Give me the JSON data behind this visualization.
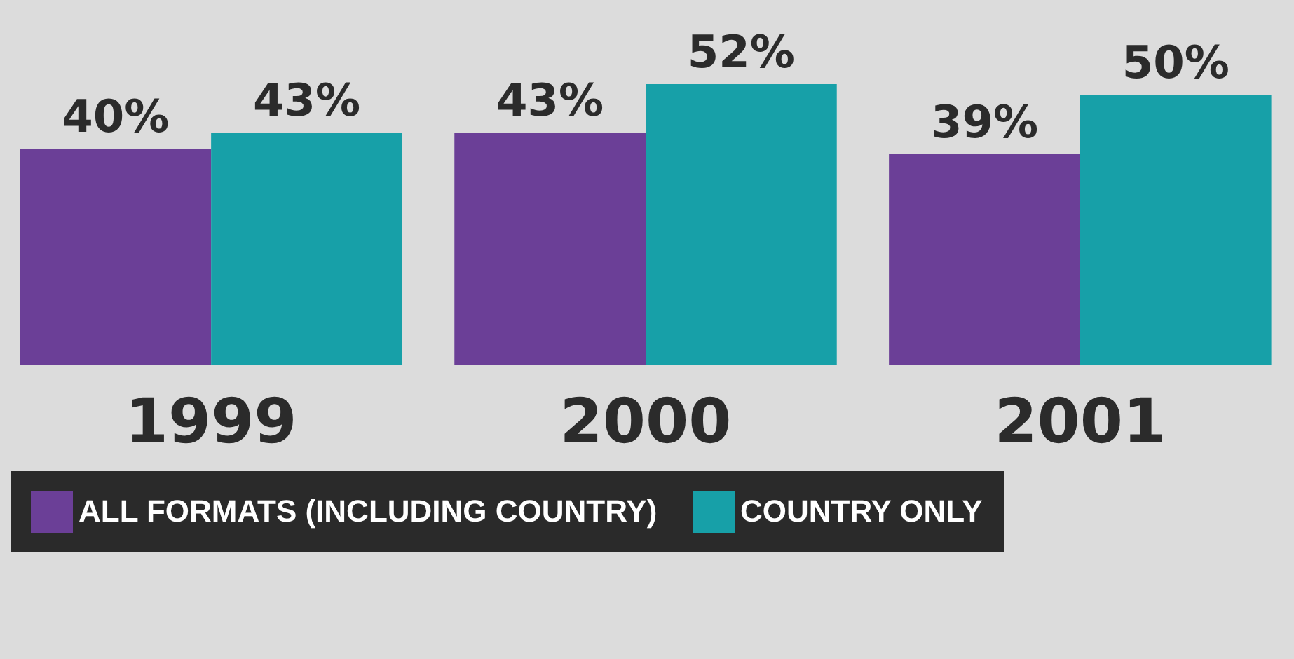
{
  "chart_data": {
    "type": "bar",
    "categories": [
      "1999",
      "2000",
      "2001"
    ],
    "series": [
      {
        "name": "ALL FORMATS (INCLUDING COUNTRY)",
        "color": "#6b3f97",
        "values": [
          40,
          43,
          39
        ],
        "value_labels": [
          "40%",
          "43%",
          "39%"
        ]
      },
      {
        "name": "COUNTRY ONLY",
        "color": "#17a0a8",
        "values": [
          43,
          52,
          50
        ],
        "value_labels": [
          "43%",
          "52%",
          "50%"
        ]
      }
    ],
    "legend": "bottom"
  }
}
